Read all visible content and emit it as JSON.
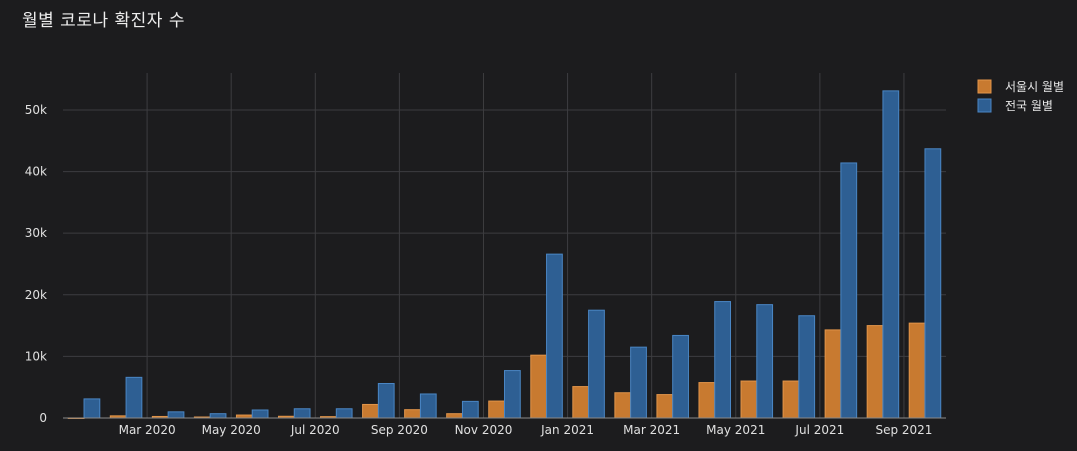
{
  "chart_data": {
    "type": "bar",
    "title": "월별 코로나 확진자 수",
    "xlabel": "",
    "ylabel": "",
    "categories": [
      "2020-01",
      "2020-02",
      "2020-03",
      "2020-04",
      "2020-05",
      "2020-06",
      "2020-07",
      "2020-08",
      "2020-09",
      "2020-10",
      "2020-11",
      "2020-12",
      "2021-01",
      "2021-02",
      "2021-03",
      "2021-04",
      "2021-05",
      "2021-06",
      "2021-07",
      "2021-08",
      "2021-09"
    ],
    "series": [
      {
        "name": "서울시 월별",
        "color": "#c87a30",
        "values": [
          7,
          350,
          250,
          160,
          480,
          280,
          220,
          2200,
          1350,
          700,
          2750,
          10200,
          5100,
          4100,
          3800,
          5750,
          6000,
          6000,
          14300,
          15000,
          15400
        ]
      },
      {
        "name": "전국 월별",
        "color": "#2e5f93",
        "values": [
          3100,
          6600,
          1000,
          700,
          1300,
          1500,
          1500,
          5600,
          3900,
          2700,
          7700,
          26600,
          17500,
          11500,
          13400,
          18900,
          18400,
          16600,
          41400,
          53100,
          43700
        ]
      }
    ],
    "x_tick_labels": [
      "Mar 2020",
      "May 2020",
      "Jul 2020",
      "Sep 2020",
      "Nov 2020",
      "Jan 2021",
      "Mar 2021",
      "May 2021",
      "Jul 2021",
      "Sep 2021"
    ],
    "y_tick_labels": [
      "0",
      "10k",
      "20k",
      "30k",
      "40k",
      "50k"
    ],
    "y_tick_values": [
      0,
      10000,
      20000,
      30000,
      40000,
      50000
    ],
    "ylim": [
      0,
      56000
    ],
    "grid": true,
    "legend_position": "top-right"
  }
}
